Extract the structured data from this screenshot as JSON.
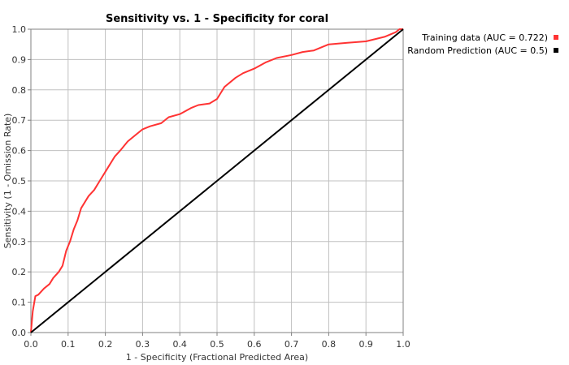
{
  "chart_data": {
    "type": "line",
    "title": "Sensitivity vs. 1 - Specificity for coral",
    "xlabel": "1 - Specificity  (Fractional Predicted Area)",
    "ylabel": "Sensitivity  (1 - Omission Rate)",
    "xlim": [
      0,
      1
    ],
    "ylim": [
      0,
      1
    ],
    "xticks": [
      "0.0",
      "0.1",
      "0.2",
      "0.3",
      "0.4",
      "0.5",
      "0.6",
      "0.7",
      "0.8",
      "0.9",
      "1.0"
    ],
    "yticks": [
      "0.0",
      "0.1",
      "0.2",
      "0.3",
      "0.4",
      "0.5",
      "0.6",
      "0.7",
      "0.8",
      "0.9",
      "1.0"
    ],
    "grid": true,
    "legend_position": "top-right",
    "series": [
      {
        "name": "Training data (AUC = 0.722)",
        "color": "#ff3333",
        "x": [
          0,
          0.005,
          0.012,
          0.02,
          0.035,
          0.05,
          0.06,
          0.075,
          0.085,
          0.095,
          0.105,
          0.115,
          0.125,
          0.135,
          0.145,
          0.155,
          0.17,
          0.185,
          0.2,
          0.21,
          0.225,
          0.24,
          0.26,
          0.28,
          0.3,
          0.32,
          0.35,
          0.37,
          0.4,
          0.43,
          0.45,
          0.48,
          0.5,
          0.52,
          0.55,
          0.57,
          0.6,
          0.63,
          0.66,
          0.7,
          0.73,
          0.76,
          0.78,
          0.8,
          0.85,
          0.9,
          0.95,
          0.98,
          0.99,
          1.0
        ],
        "y": [
          0,
          0.07,
          0.12,
          0.125,
          0.145,
          0.16,
          0.18,
          0.2,
          0.22,
          0.27,
          0.3,
          0.34,
          0.37,
          0.41,
          0.43,
          0.45,
          0.47,
          0.5,
          0.53,
          0.55,
          0.58,
          0.6,
          0.63,
          0.65,
          0.67,
          0.68,
          0.69,
          0.71,
          0.72,
          0.74,
          0.75,
          0.755,
          0.77,
          0.81,
          0.84,
          0.855,
          0.87,
          0.89,
          0.905,
          0.915,
          0.925,
          0.93,
          0.94,
          0.95,
          0.955,
          0.96,
          0.975,
          0.99,
          1.0,
          1.0
        ]
      },
      {
        "name": "Random Prediction (AUC = 0.5)",
        "color": "#000000",
        "x": [
          0,
          1
        ],
        "y": [
          0,
          1
        ]
      }
    ]
  }
}
